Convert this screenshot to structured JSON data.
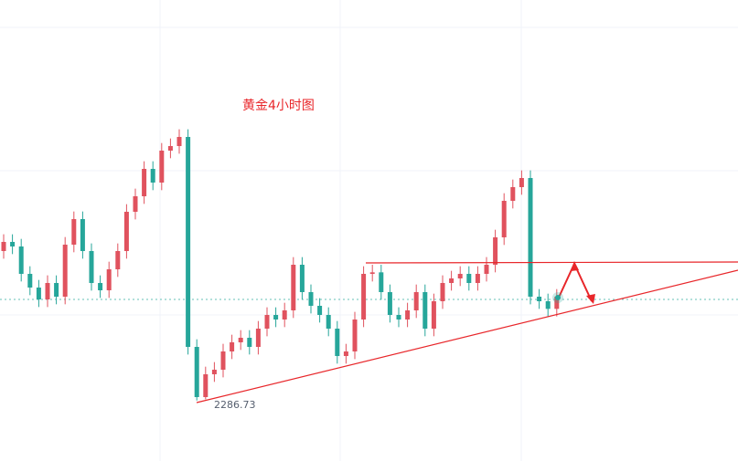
{
  "chart_data": {
    "type": "candlestick",
    "title": "黄金4小时图",
    "ylim": [
      2247,
      2550
    ],
    "up_color": "#e0525e",
    "down_color": "#26a69a",
    "open": [
      2385,
      2391,
      2388,
      2370,
      2361,
      2353.2,
      2364,
      2355,
      2389.2,
      2406,
      2385,
      2364,
      2359.2,
      2373,
      2385,
      2410.8,
      2421,
      2439,
      2430,
      2451,
      2454,
      2460,
      2322,
      2289,
      2304,
      2307,
      2319,
      2325,
      2328,
      2322,
      2334,
      2343,
      2340,
      2346,
      2376,
      2358,
      2349,
      2343,
      2334,
      2316,
      2319,
      2340,
      2370,
      2371,
      2358,
      2343,
      2340,
      2346,
      2358,
      2334,
      2352,
      2364,
      2367,
      2370,
      2364,
      2370,
      2376,
      2394,
      2418,
      2427,
      2433,
      2355,
      2352,
      2347
    ],
    "high": [
      2396,
      2396,
      2393,
      2375,
      2366,
      2369,
      2369,
      2394.2,
      2411,
      2411,
      2390,
      2369,
      2378,
      2390,
      2415.8,
      2426,
      2444,
      2444,
      2456,
      2459,
      2465,
      2465,
      2327,
      2309,
      2312,
      2324,
      2330,
      2333,
      2333,
      2339,
      2348,
      2348,
      2351,
      2381,
      2381,
      2363,
      2354,
      2348,
      2339,
      2324,
      2345,
      2375,
      2376,
      2376,
      2363,
      2348,
      2351,
      2363,
      2363,
      2357,
      2369,
      2372,
      2375,
      2375,
      2375,
      2381,
      2399,
      2423,
      2432,
      2438,
      2438,
      2360,
      2357,
      2360
    ],
    "low": [
      2380,
      2383,
      2365,
      2356,
      2348.2,
      2348.2,
      2350,
      2350,
      2384.2,
      2380,
      2359,
      2354.2,
      2354.2,
      2368,
      2380,
      2405.8,
      2416,
      2425,
      2425,
      2446,
      2449,
      2317,
      2286.73,
      2287.5,
      2299,
      2302,
      2314,
      2320,
      2317,
      2317,
      2329,
      2335,
      2335,
      2341,
      2353,
      2344,
      2338,
      2329,
      2311,
      2311,
      2314,
      2335,
      2365,
      2353,
      2338,
      2335,
      2335,
      2341,
      2329,
      2329,
      2347,
      2359,
      2362,
      2359,
      2359,
      2365,
      2371,
      2389,
      2413,
      2422,
      2350,
      2347,
      2342,
      2342
    ],
    "close": [
      2391,
      2388,
      2370,
      2361,
      2353.2,
      2364,
      2355,
      2389.2,
      2406,
      2385,
      2364,
      2359.2,
      2373,
      2385,
      2410.8,
      2421,
      2439,
      2430,
      2451,
      2454,
      2460,
      2322,
      2289,
      2304,
      2307,
      2319,
      2325,
      2328,
      2322,
      2334,
      2343,
      2340,
      2346,
      2376,
      2358,
      2349,
      2343,
      2334,
      2316,
      2319,
      2340,
      2370,
      2371,
      2358,
      2343,
      2340,
      2346,
      2358,
      2334,
      2352,
      2364,
      2367,
      2370,
      2364,
      2370,
      2376,
      2394,
      2418,
      2427,
      2433,
      2355,
      2352,
      2347,
      2355
    ]
  }
}
